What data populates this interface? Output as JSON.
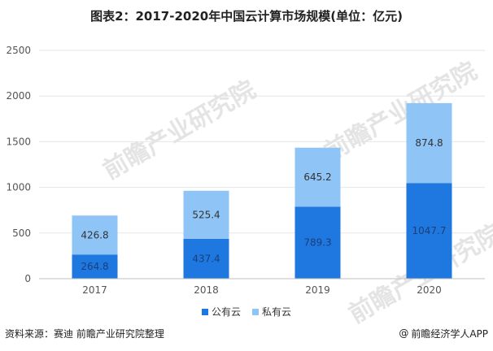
{
  "chart_data": {
    "type": "bar",
    "stacked": true,
    "title": "图表2：2017-2020年中国云计算市场规模(单位：亿元)",
    "xlabel": "",
    "ylabel": "",
    "categories": [
      "2017",
      "2018",
      "2019",
      "2020"
    ],
    "series": [
      {
        "name": "公有云",
        "values": [
          264.8,
          437.4,
          789.3,
          1047.7
        ],
        "color": "#1f78e0"
      },
      {
        "name": "私有云",
        "values": [
          426.8,
          525.4,
          645.2,
          874.8
        ],
        "color": "#8fc4f7"
      }
    ],
    "ylim": [
      0,
      2500
    ],
    "yticks": [
      "0",
      "500",
      "1000",
      "1500",
      "2000",
      "2500"
    ],
    "grid": true,
    "legend_position": "bottom"
  },
  "footer": {
    "source": "资料来源：赛迪 前瞻产业研究院整理",
    "brand": "前瞻经济学人APP",
    "brand_symbol": "@"
  },
  "watermark": {
    "text": "前瞻产业研究院",
    "icon": "qianzhan-logo-icon"
  },
  "colors": {
    "axis": "#bfbfbf",
    "label_on_dark": "#1b3f7a",
    "label_on_light": "#333333"
  }
}
